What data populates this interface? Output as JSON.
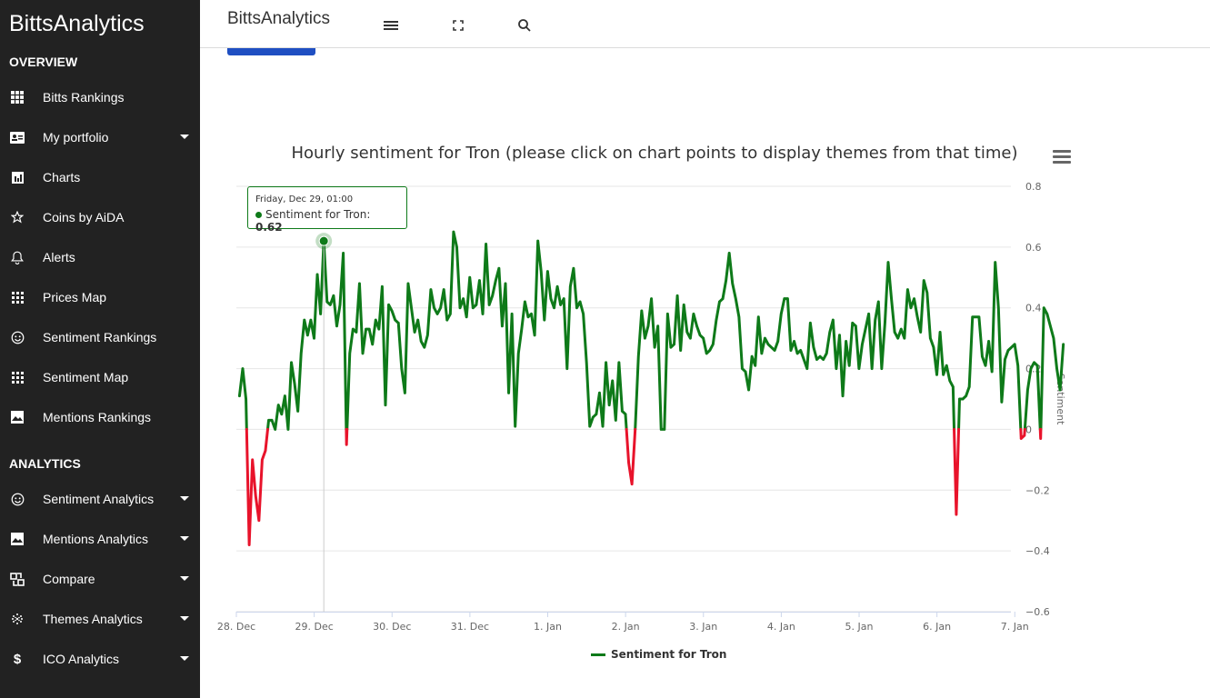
{
  "sidebar": {
    "brand": "BittsAnalytics",
    "overview_label": "OVERVIEW",
    "analytics_label": "ANALYTICS",
    "overview_items": [
      {
        "label": "Bitts Rankings",
        "icon": "grid-icon",
        "caret": false
      },
      {
        "label": "My portfolio",
        "icon": "id-card-icon",
        "caret": true
      },
      {
        "label": "Charts",
        "icon": "bar-chart-icon",
        "caret": false
      },
      {
        "label": "Coins by AiDA",
        "icon": "star-icon",
        "caret": false
      },
      {
        "label": "Alerts",
        "icon": "bell-icon",
        "caret": false
      },
      {
        "label": "Prices Map",
        "icon": "dots-grid-icon",
        "caret": false
      },
      {
        "label": "Sentiment Rankings",
        "icon": "smiley-icon",
        "caret": false
      },
      {
        "label": "Sentiment Map",
        "icon": "dots-grid-icon",
        "caret": false
      },
      {
        "label": "Mentions Rankings",
        "icon": "image-chart-icon",
        "caret": false
      }
    ],
    "analytics_items": [
      {
        "label": "Sentiment Analytics",
        "icon": "smiley-icon",
        "caret": true
      },
      {
        "label": "Mentions Analytics",
        "icon": "image-chart-icon",
        "caret": true
      },
      {
        "label": "Compare",
        "icon": "compare-icon",
        "caret": true
      },
      {
        "label": "Themes Analytics",
        "icon": "sphere-icon",
        "caret": true
      },
      {
        "label": "ICO Analytics",
        "icon": "dollar-icon",
        "caret": true
      }
    ]
  },
  "topbar": {
    "title": "BittsAnalytics",
    "buttons": [
      "hamburger-icon",
      "fullscreen-icon",
      "search-icon"
    ]
  },
  "colors": {
    "positive": "#0e7a19",
    "negative": "#e8132b",
    "sidebar_bg": "#222222",
    "accent": "#1f4fc2"
  },
  "chart_data": {
    "type": "line",
    "title": "Hourly sentiment for Tron (please click on chart points to display themes from that time)",
    "ylabel": "Sentiment",
    "ylim": [
      -0.6,
      0.8
    ],
    "yticks": [
      "0.8",
      "0.6",
      "0.4",
      "0.2",
      "0",
      "−0.2",
      "−0.4",
      "−0.6"
    ],
    "yticks_values": [
      0.8,
      0.6,
      0.4,
      0.2,
      0,
      -0.2,
      -0.4,
      -0.6
    ],
    "xticks": [
      "28. Dec",
      "29. Dec",
      "30. Dec",
      "31. Dec",
      "1. Jan",
      "2. Jan",
      "3. Jan",
      "4. Jan",
      "5. Jan",
      "6. Jan",
      "7. Jan"
    ],
    "xlim_days": [
      0,
      9.95
    ],
    "legend_position": "bottom-center",
    "grid": true,
    "series": [
      {
        "name": "Sentiment for Tron",
        "values_hourly": [
          0.11,
          0.2,
          0.1,
          -0.38,
          -0.1,
          -0.22,
          -0.3,
          -0.1,
          -0.07,
          0.03,
          0.03,
          0,
          0.08,
          0.05,
          0.11,
          0,
          0.22,
          0.15,
          0.06,
          0.25,
          0.36,
          0.31,
          0.36,
          0.3,
          0.51,
          0.38,
          0.62,
          0.42,
          0.41,
          0.44,
          0.34,
          0.41,
          0.58,
          -0.05,
          0.25,
          0.33,
          0.32,
          0.48,
          0.25,
          0.33,
          0.33,
          0.28,
          0.36,
          0.33,
          0.47,
          0.08,
          0.41,
          0.39,
          0.36,
          0.35,
          0.2,
          0.12,
          0.48,
          0.4,
          0.32,
          0.36,
          0.29,
          0.27,
          0.31,
          0.46,
          0.4,
          0.38,
          0.4,
          0.46,
          0.36,
          0.38,
          0.65,
          0.6,
          0.4,
          0.43,
          0.37,
          0.5,
          0.4,
          0.41,
          0.49,
          0.38,
          0.61,
          0.41,
          0.44,
          0.49,
          0.53,
          0.34,
          0.48,
          0.12,
          0.38,
          0.01,
          0.25,
          0.33,
          0.42,
          0.37,
          0.38,
          0.31,
          0.62,
          0.52,
          0.36,
          0.52,
          0.43,
          0.4,
          0.47,
          0.41,
          0.43,
          0.2,
          0.47,
          0.53,
          0.4,
          0.42,
          0.38,
          0.22,
          0.01,
          0.04,
          0.05,
          0.12,
          0.01,
          0.22,
          0.08,
          0.16,
          0.03,
          0.22,
          0.06,
          0.05,
          -0.11,
          -0.18,
          0.0,
          0.24,
          0.39,
          0.3,
          0.34,
          0.43,
          0.27,
          0.34,
          0.0,
          0.0,
          0.38,
          0.27,
          0.28,
          0.44,
          0.26,
          0.41,
          0.32,
          0.3,
          0.38,
          0.34,
          0.31,
          0.3,
          0.25,
          0.26,
          0.28,
          0.36,
          0.42,
          0.43,
          0.49,
          0.58,
          0.48,
          0.43,
          0.37,
          0.2,
          0.19,
          0.13,
          0.24,
          0.21,
          0.37,
          0.25,
          0.3,
          0.28,
          0.27,
          0.26,
          0.29,
          0.38,
          0.43,
          0.43,
          0.26,
          0.29,
          0.25,
          0.26,
          0.23,
          0.2,
          0.35,
          0.27,
          0.23,
          0.24,
          0.23,
          0.25,
          0.32,
          0.36,
          0.2,
          0.31,
          0.11,
          0.29,
          0.21,
          0.35,
          0.34,
          0.2,
          0.28,
          0.33,
          0.38,
          0.2,
          0.36,
          0.42,
          0.2,
          0.35,
          0.55,
          0.43,
          0.32,
          0.3,
          0.33,
          0.3,
          0.46,
          0.4,
          0.43,
          0.37,
          0.32,
          0.49,
          0.45,
          0.3,
          0.27,
          0.18,
          0.32,
          0.18,
          0.21,
          0.16,
          0.14,
          -0.28,
          0.1,
          0.1,
          0.11,
          0.14,
          0.37,
          0.37,
          0.37,
          0.24,
          0.21,
          0.29,
          0.19,
          0.55,
          0.4,
          0.09,
          0.23,
          0.26,
          0.27,
          0.28,
          0.21,
          -0.03,
          -0.02,
          0.13,
          0.2,
          0.22,
          0.21,
          -0.03,
          0.4,
          0.38,
          0.34,
          0.3,
          0.2,
          0.13,
          0.28
        ]
      }
    ],
    "tooltip": {
      "date": "Friday, Dec 29, 01:00",
      "series_label": "Sentiment for Tron:",
      "value": "0.62",
      "hour_index": 26
    }
  }
}
